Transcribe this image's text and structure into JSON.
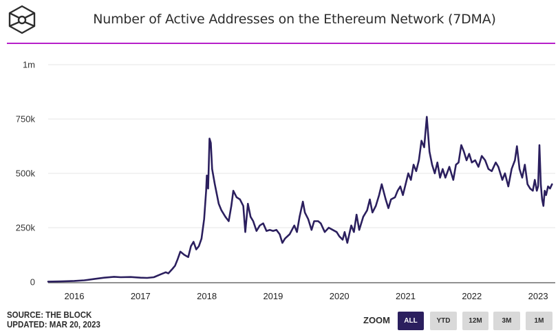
{
  "header": {
    "logo_icon": "cube-icon",
    "title": "Number of Active Addresses on the Ethereum Network (7DMA)"
  },
  "footer": {
    "source": "SOURCE: THE BLOCK",
    "updated": "UPDATED: MAR 20, 2023"
  },
  "zoom": {
    "label": "ZOOM",
    "buttons": [
      {
        "label": "ALL",
        "active": true
      },
      {
        "label": "YTD",
        "active": false
      },
      {
        "label": "12M",
        "active": false
      },
      {
        "label": "3M",
        "active": false
      },
      {
        "label": "1M",
        "active": false
      }
    ]
  },
  "colors": {
    "line": "#2b1f5e",
    "accent_rule": "#b61fc9",
    "grid": "#e6e6e6",
    "button_active": "#2b1f5e",
    "button_inactive": "#d9d9d9"
  },
  "chart_data": {
    "type": "line",
    "title": "Number of Active Addresses on the Ethereum Network (7DMA)",
    "xlabel": "",
    "ylabel": "",
    "xlim": [
      2015.6,
      2023.21
    ],
    "ylim": [
      0,
      1000000
    ],
    "yticks": [
      {
        "value": 0,
        "label": "0"
      },
      {
        "value": 250000,
        "label": "250k"
      },
      {
        "value": 500000,
        "label": "500k"
      },
      {
        "value": 750000,
        "label": "750k"
      },
      {
        "value": 1000000,
        "label": "1m"
      }
    ],
    "xticks": [
      {
        "value": 2016,
        "label": "2016"
      },
      {
        "value": 2017,
        "label": "2017"
      },
      {
        "value": 2018,
        "label": "2018"
      },
      {
        "value": 2019,
        "label": "2019"
      },
      {
        "value": 2020,
        "label": "2020"
      },
      {
        "value": 2021,
        "label": "2021"
      },
      {
        "value": 2022,
        "label": "2022"
      },
      {
        "value": 2023,
        "label": "2023"
      }
    ],
    "grid": true,
    "legend": "none",
    "series": [
      {
        "name": "Active Addresses (7DMA)",
        "points": [
          [
            2015.6,
            2000
          ],
          [
            2015.8,
            3000
          ],
          [
            2016.0,
            5000
          ],
          [
            2016.15,
            8000
          ],
          [
            2016.3,
            14000
          ],
          [
            2016.45,
            20000
          ],
          [
            2016.6,
            24000
          ],
          [
            2016.7,
            22000
          ],
          [
            2016.85,
            23000
          ],
          [
            2017.0,
            20000
          ],
          [
            2017.1,
            19000
          ],
          [
            2017.2,
            22000
          ],
          [
            2017.3,
            35000
          ],
          [
            2017.38,
            45000
          ],
          [
            2017.42,
            40000
          ],
          [
            2017.48,
            60000
          ],
          [
            2017.52,
            75000
          ],
          [
            2017.56,
            105000
          ],
          [
            2017.6,
            140000
          ],
          [
            2017.66,
            125000
          ],
          [
            2017.72,
            115000
          ],
          [
            2017.76,
            165000
          ],
          [
            2017.8,
            185000
          ],
          [
            2017.84,
            150000
          ],
          [
            2017.88,
            165000
          ],
          [
            2017.92,
            200000
          ],
          [
            2017.96,
            290000
          ],
          [
            2017.99,
            420000
          ],
          [
            2018.0,
            490000
          ],
          [
            2018.02,
            430000
          ],
          [
            2018.04,
            660000
          ],
          [
            2018.06,
            640000
          ],
          [
            2018.08,
            520000
          ],
          [
            2018.12,
            450000
          ],
          [
            2018.18,
            360000
          ],
          [
            2018.22,
            330000
          ],
          [
            2018.28,
            300000
          ],
          [
            2018.33,
            280000
          ],
          [
            2018.37,
            350000
          ],
          [
            2018.4,
            420000
          ],
          [
            2018.45,
            390000
          ],
          [
            2018.5,
            380000
          ],
          [
            2018.55,
            350000
          ],
          [
            2018.58,
            230000
          ],
          [
            2018.62,
            360000
          ],
          [
            2018.66,
            300000
          ],
          [
            2018.7,
            280000
          ],
          [
            2018.75,
            235000
          ],
          [
            2018.8,
            260000
          ],
          [
            2018.85,
            270000
          ],
          [
            2018.9,
            235000
          ],
          [
            2018.95,
            240000
          ],
          [
            2019.0,
            235000
          ],
          [
            2019.05,
            240000
          ],
          [
            2019.1,
            220000
          ],
          [
            2019.14,
            180000
          ],
          [
            2019.18,
            200000
          ],
          [
            2019.25,
            220000
          ],
          [
            2019.32,
            260000
          ],
          [
            2019.36,
            230000
          ],
          [
            2019.4,
            300000
          ],
          [
            2019.45,
            370000
          ],
          [
            2019.48,
            320000
          ],
          [
            2019.53,
            290000
          ],
          [
            2019.58,
            240000
          ],
          [
            2019.62,
            280000
          ],
          [
            2019.68,
            280000
          ],
          [
            2019.72,
            270000
          ],
          [
            2019.78,
            230000
          ],
          [
            2019.84,
            250000
          ],
          [
            2019.9,
            240000
          ],
          [
            2019.96,
            230000
          ],
          [
            2020.0,
            210000
          ],
          [
            2020.05,
            195000
          ],
          [
            2020.08,
            230000
          ],
          [
            2020.12,
            180000
          ],
          [
            2020.18,
            260000
          ],
          [
            2020.22,
            230000
          ],
          [
            2020.26,
            310000
          ],
          [
            2020.3,
            240000
          ],
          [
            2020.36,
            300000
          ],
          [
            2020.42,
            330000
          ],
          [
            2020.46,
            380000
          ],
          [
            2020.5,
            320000
          ],
          [
            2020.55,
            350000
          ],
          [
            2020.6,
            400000
          ],
          [
            2020.64,
            450000
          ],
          [
            2020.7,
            380000
          ],
          [
            2020.74,
            340000
          ],
          [
            2020.78,
            380000
          ],
          [
            2020.84,
            390000
          ],
          [
            2020.88,
            420000
          ],
          [
            2020.92,
            440000
          ],
          [
            2020.96,
            400000
          ],
          [
            2021.0,
            450000
          ],
          [
            2021.04,
            500000
          ],
          [
            2021.08,
            470000
          ],
          [
            2021.12,
            540000
          ],
          [
            2021.16,
            510000
          ],
          [
            2021.2,
            560000
          ],
          [
            2021.24,
            650000
          ],
          [
            2021.28,
            620000
          ],
          [
            2021.32,
            760000
          ],
          [
            2021.36,
            600000
          ],
          [
            2021.4,
            540000
          ],
          [
            2021.44,
            500000
          ],
          [
            2021.48,
            550000
          ],
          [
            2021.52,
            480000
          ],
          [
            2021.56,
            520000
          ],
          [
            2021.6,
            480000
          ],
          [
            2021.66,
            530000
          ],
          [
            2021.72,
            470000
          ],
          [
            2021.76,
            540000
          ],
          [
            2021.8,
            550000
          ],
          [
            2021.84,
            630000
          ],
          [
            2021.88,
            600000
          ],
          [
            2021.92,
            560000
          ],
          [
            2021.96,
            590000
          ],
          [
            2022.0,
            550000
          ],
          [
            2022.05,
            560000
          ],
          [
            2022.1,
            530000
          ],
          [
            2022.15,
            580000
          ],
          [
            2022.2,
            560000
          ],
          [
            2022.25,
            520000
          ],
          [
            2022.3,
            510000
          ],
          [
            2022.36,
            550000
          ],
          [
            2022.4,
            530000
          ],
          [
            2022.46,
            470000
          ],
          [
            2022.5,
            500000
          ],
          [
            2022.55,
            440000
          ],
          [
            2022.6,
            520000
          ],
          [
            2022.65,
            560000
          ],
          [
            2022.68,
            625000
          ],
          [
            2022.72,
            520000
          ],
          [
            2022.76,
            480000
          ],
          [
            2022.8,
            540000
          ],
          [
            2022.84,
            450000
          ],
          [
            2022.88,
            430000
          ],
          [
            2022.92,
            420000
          ],
          [
            2022.95,
            470000
          ],
          [
            2022.98,
            420000
          ],
          [
            2023.0,
            440000
          ],
          [
            2023.02,
            630000
          ],
          [
            2023.04,
            450000
          ],
          [
            2023.06,
            380000
          ],
          [
            2023.08,
            350000
          ],
          [
            2023.1,
            420000
          ],
          [
            2023.12,
            400000
          ],
          [
            2023.15,
            440000
          ],
          [
            2023.18,
            430000
          ],
          [
            2023.21,
            450000
          ]
        ]
      }
    ]
  }
}
